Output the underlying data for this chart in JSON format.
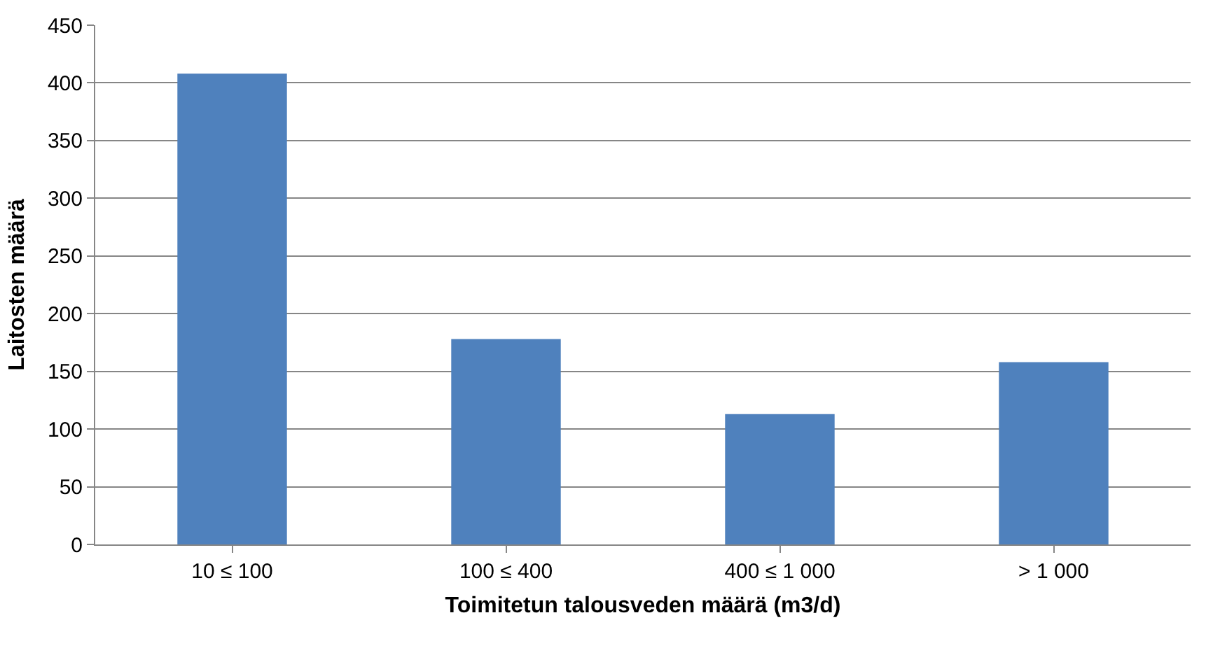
{
  "chart_data": {
    "type": "bar",
    "xlabel": "Toimitetun talousveden määrä (m3/d)",
    "ylabel": "Laitosten määrä",
    "categories": [
      "10 ≤ 100",
      "100 ≤ 400",
      "400 ≤ 1 000",
      "> 1 000"
    ],
    "values": [
      408,
      178,
      113,
      158
    ],
    "color": "#4f81bd",
    "ylim": [
      0,
      450
    ],
    "yticks": [
      0,
      50,
      100,
      150,
      200,
      250,
      300,
      350,
      400,
      450
    ],
    "grid": "y",
    "legend": false
  }
}
